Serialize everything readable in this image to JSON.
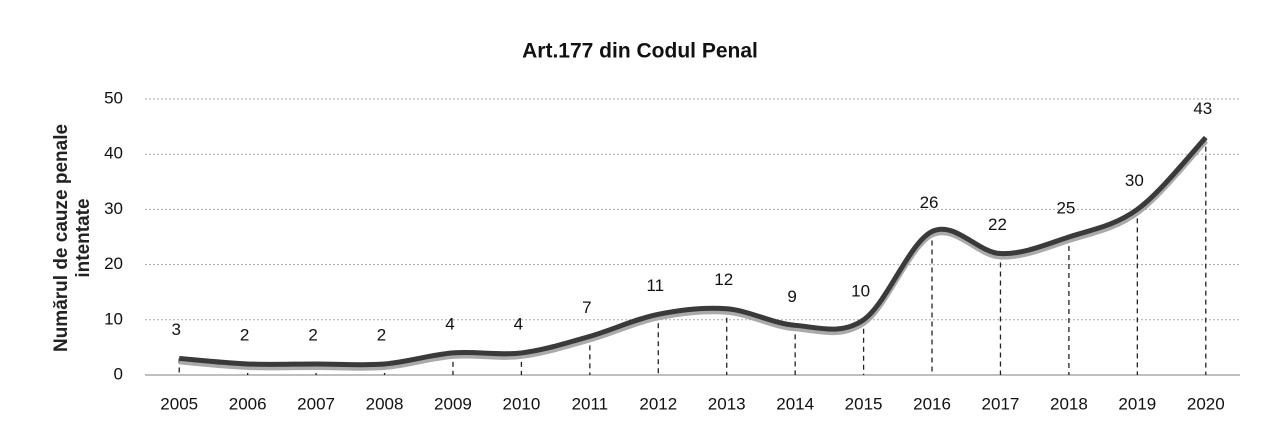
{
  "chart_data": {
    "type": "line",
    "title": "Art.177 din Codul Penal",
    "ylabel": [
      "Numărul de cauze penale",
      "intentate"
    ],
    "categories": [
      "2005",
      "2006",
      "2007",
      "2008",
      "2009",
      "2010",
      "2011",
      "2012",
      "2013",
      "2014",
      "2015",
      "2016",
      "2017",
      "2018",
      "2019",
      "2020"
    ],
    "values": [
      3,
      2,
      2,
      2,
      4,
      4,
      7,
      11,
      12,
      9,
      10,
      26,
      22,
      25,
      30,
      43
    ],
    "color": "#3a3a3a",
    "ylim": [
      0,
      50
    ],
    "yticks": [
      0,
      10,
      20,
      30,
      40,
      50
    ],
    "grid": true,
    "smooth": true,
    "drop_lines": true
  }
}
